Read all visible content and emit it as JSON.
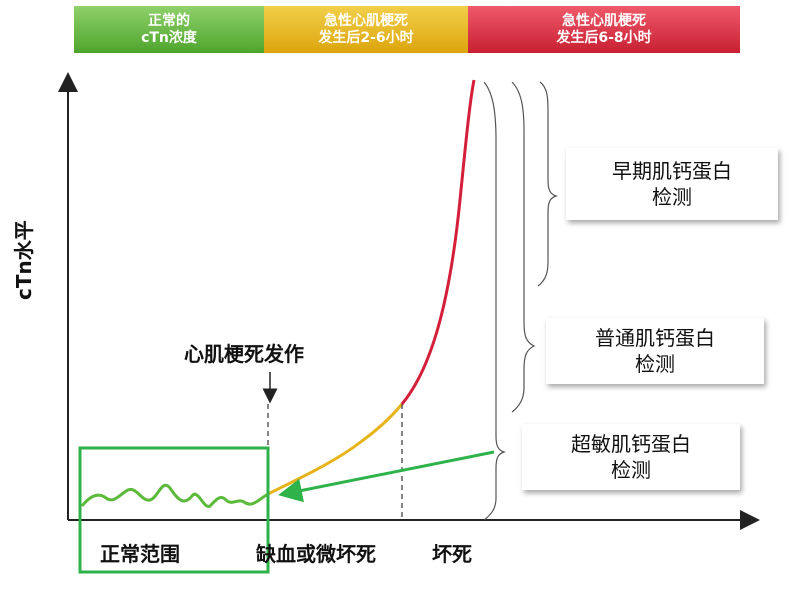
{
  "phase_bands": [
    {
      "line1": "正常的",
      "line2": "cTn浓度",
      "color": "#5cb335"
    },
    {
      "line1": "急性心肌梗死",
      "line2": "发生后2-6小时",
      "color": "#e3b11e"
    },
    {
      "line1": "急性心肌梗死",
      "line2": "发生后6-8小时",
      "color": "#d42f40"
    }
  ],
  "y_axis_label": "cTn水平",
  "onset_label": "心肌梗死发作",
  "x_labels": {
    "normal": "正常范围",
    "ischemia": "缺血或微坏死",
    "necrosis": "坏死"
  },
  "detection_boxes": [
    {
      "line1": "早期肌钙蛋白",
      "line2": "检测"
    },
    {
      "line1": "普通肌钙蛋白",
      "line2": "检测"
    },
    {
      "line1": "超敏肌钙蛋白",
      "line2": "检测"
    }
  ],
  "colors": {
    "normal_curve": "#5cba3a",
    "rising_curve": "#e6b419",
    "steep_curve": "#d41f3a",
    "highlight_box": "#2db34a"
  }
}
